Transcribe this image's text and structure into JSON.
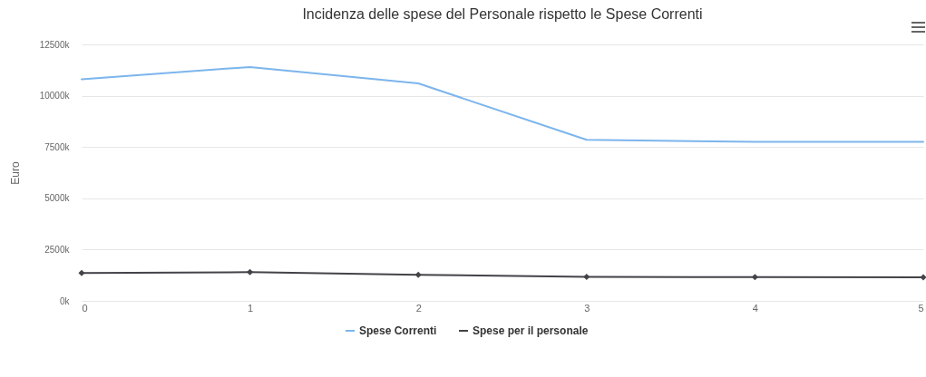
{
  "chart_data": {
    "type": "line",
    "title": "Incidenza delle spese del Personale rispetto le Spese Correnti",
    "ylabel": "Euro",
    "x": [
      0,
      1,
      2,
      3,
      4,
      5
    ],
    "series": [
      {
        "name": "Spese Correnti",
        "color": "#7cb5ec",
        "marker": "none",
        "values": [
          10800,
          11400,
          10600,
          7850,
          7750,
          7750
        ]
      },
      {
        "name": "Spese per il personale",
        "color": "#434348",
        "marker": "diamond",
        "values": [
          1360,
          1400,
          1270,
          1170,
          1160,
          1150
        ]
      }
    ],
    "xlim": [
      0,
      5
    ],
    "xticks": [
      0,
      1,
      2,
      3,
      4,
      5
    ],
    "ylim": [
      0,
      12500
    ],
    "yticks": [
      {
        "value": 0,
        "label": "0k"
      },
      {
        "value": 2500,
        "label": "2500k"
      },
      {
        "value": 5000,
        "label": "5000k"
      },
      {
        "value": 7500,
        "label": "7500k"
      },
      {
        "value": 10000,
        "label": "10000k"
      },
      {
        "value": 12500,
        "label": "12500k"
      }
    ],
    "grid": "y",
    "legend": "bottom",
    "line_style": "solid"
  }
}
